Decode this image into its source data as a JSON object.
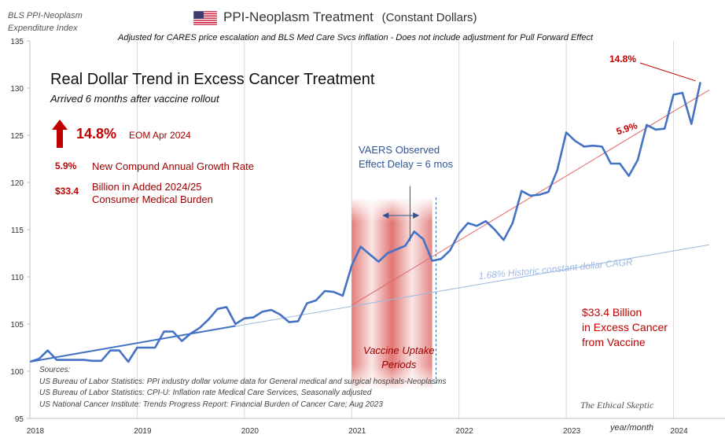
{
  "header": {
    "corner_line1": "BLS PPI-Neoplasm",
    "corner_line2": "Expenditure Index",
    "title_main": "PPI-Neoplasm  Treatment",
    "title_paren": "(Constant Dollars)",
    "subtitle": "Adjusted for CARES price escalation and BLS Med Care Svcs inflation - Does not include adjustment for Pull Forward Effect",
    "flag_icon": "us-flag-icon"
  },
  "panel": {
    "headline": "Real Dollar Trend in Excess Cancer Treatment",
    "subhead": "Arrived 6 months after vaccine rollout",
    "stat1_value": "14.8%",
    "stat1_label": "EOM Apr 2024",
    "stat2_value": "5.9%",
    "stat2_label": "New Compund Annual Growth Rate",
    "stat3_value": "$33.4",
    "stat3_label_line1": "Billion in Added 2024/25",
    "stat3_label_line2": "Consumer Medical Burden",
    "arrow_icon": "red-up-arrow-icon"
  },
  "annotations": {
    "vaers_line1": "VAERS Observed",
    "vaers_line2": "Effect Delay = 6 mos",
    "uptake_line1": "Vaccine Uptake",
    "uptake_line2": "Periods",
    "cagr_label": "1.68%  Historic constant dollar CAGR",
    "trend_label": "5.9%",
    "peak_label": "14.8%",
    "excess_line1": "$33.4 Billion",
    "excess_line2": "in Excess Cancer",
    "excess_line3": "from Vaccine",
    "watermark": "The Ethical Skeptic",
    "x_unit": "year/month"
  },
  "sources": {
    "line0": "Sources:",
    "line1": "US Bureau of Labor Statistics: PPI industry dollar volume data for General medical and surgical hospitals-Neoplasms",
    "line2": "US Bureau of Labor Statistics: CPI-U: Inflation rate Medical Care Services, Seasonally adjusted",
    "line3": "US National Cancer Institute: Trends Progress Report: Financial Burden of Cancer Care; Aug 2023"
  },
  "colors": {
    "series": "#4472c4",
    "trend_red": "#e06666",
    "cagr_blue": "#9db9e0",
    "accent_red": "#c00000",
    "band_red": "#d9534f"
  },
  "chart_data": {
    "type": "line",
    "title": "PPI-Neoplasm  Treatment (Constant Dollars)",
    "ylim": [
      95,
      135
    ],
    "yticks": [
      95,
      100,
      105,
      110,
      115,
      120,
      125,
      130,
      135
    ],
    "xlim": [
      "2018-01",
      "2024-05"
    ],
    "xticks": [
      "2018",
      "2019",
      "2020",
      "2021",
      "2022",
      "2023",
      "2024"
    ],
    "grid": "vertical",
    "series": [
      {
        "values": [
          [
            "2018-01",
            101.0
          ],
          [
            "2018-02",
            101.3
          ],
          [
            "2018-03",
            102.2
          ],
          [
            "2018-04",
            101.2
          ],
          [
            "2018-05",
            101.2
          ],
          [
            "2018-06",
            101.2
          ],
          [
            "2018-07",
            101.2
          ],
          [
            "2018-08",
            101.1
          ],
          [
            "2018-09",
            101.1
          ],
          [
            "2018-10",
            102.2
          ],
          [
            "2018-11",
            102.2
          ],
          [
            "2018-12",
            101.0
          ],
          [
            "2019-01",
            102.5
          ],
          [
            "2019-02",
            102.5
          ],
          [
            "2019-03",
            102.5
          ],
          [
            "2019-04",
            104.2
          ],
          [
            "2019-05",
            104.2
          ],
          [
            "2019-06",
            103.2
          ],
          [
            "2019-07",
            104.0
          ],
          [
            "2019-08",
            104.6
          ],
          [
            "2019-09",
            105.5
          ],
          [
            "2019-10",
            106.6
          ],
          [
            "2019-11",
            106.8
          ],
          [
            "2019-12",
            105.0
          ],
          [
            "2020-01",
            105.6
          ],
          [
            "2020-02",
            105.7
          ],
          [
            "2020-03",
            106.3
          ],
          [
            "2020-04",
            106.5
          ],
          [
            "2020-05",
            106.0
          ],
          [
            "2020-06",
            105.2
          ],
          [
            "2020-07",
            105.3
          ],
          [
            "2020-08",
            107.2
          ],
          [
            "2020-09",
            107.5
          ],
          [
            "2020-10",
            108.5
          ],
          [
            "2020-11",
            108.4
          ],
          [
            "2020-12",
            108.0
          ],
          [
            "2021-01",
            111.2
          ],
          [
            "2021-02",
            113.2
          ],
          [
            "2021-03",
            112.4
          ],
          [
            "2021-04",
            111.6
          ],
          [
            "2021-05",
            112.5
          ],
          [
            "2021-06",
            112.9
          ],
          [
            "2021-07",
            113.3
          ],
          [
            "2021-08",
            114.8
          ],
          [
            "2021-09",
            114.0
          ],
          [
            "2021-10",
            111.7
          ],
          [
            "2021-11",
            111.9
          ],
          [
            "2021-12",
            112.8
          ],
          [
            "2022-01",
            114.6
          ],
          [
            "2022-02",
            115.7
          ],
          [
            "2022-03",
            115.4
          ],
          [
            "2022-04",
            115.9
          ],
          [
            "2022-05",
            115.0
          ],
          [
            "2022-06",
            113.9
          ],
          [
            "2022-07",
            115.7
          ],
          [
            "2022-08",
            119.1
          ],
          [
            "2022-09",
            118.6
          ],
          [
            "2022-10",
            118.7
          ],
          [
            "2022-11",
            119.0
          ],
          [
            "2022-12",
            121.3
          ],
          [
            "2023-01",
            125.3
          ],
          [
            "2023-02",
            124.4
          ],
          [
            "2023-03",
            123.8
          ],
          [
            "2023-04",
            123.9
          ],
          [
            "2023-05",
            123.8
          ],
          [
            "2023-06",
            122.0
          ],
          [
            "2023-07",
            122.0
          ],
          [
            "2023-08",
            120.7
          ],
          [
            "2023-09",
            122.4
          ],
          [
            "2023-10",
            126.1
          ],
          [
            "2023-11",
            125.6
          ],
          [
            "2023-12",
            125.7
          ],
          [
            "2024-01",
            129.3
          ],
          [
            "2024-02",
            129.5
          ],
          [
            "2024-03",
            126.2
          ],
          [
            "2024-04",
            130.6
          ]
        ]
      }
    ],
    "trendlines": [
      {
        "label": "1.68%  Historic constant dollar CAGR",
        "from": [
          "2018-01",
          101.0
        ],
        "to": [
          "2024-05",
          113.4
        ]
      },
      {
        "label": "5.9%",
        "from": [
          "2021-01",
          107.0
        ],
        "to": [
          "2024-05",
          129.8
        ]
      },
      {
        "from": [
          "2018-01",
          101.0
        ],
        "to": [
          "2019-12",
          104.8
        ]
      }
    ],
    "shaded_periods": [
      [
        "2021-01",
        "2021-10"
      ]
    ]
  }
}
